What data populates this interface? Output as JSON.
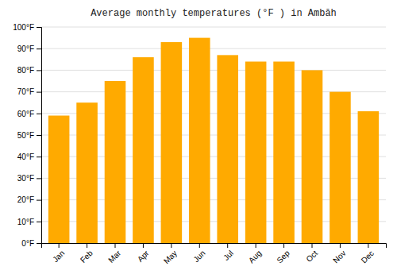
{
  "chart_data": {
    "type": "bar",
    "title": "Average monthly temperatures (°F ) in Ambāh",
    "categories": [
      "Jan",
      "Feb",
      "Mar",
      "Apr",
      "May",
      "Jun",
      "Jul",
      "Aug",
      "Sep",
      "Oct",
      "Nov",
      "Dec"
    ],
    "values": [
      59,
      65,
      75,
      86,
      93,
      95,
      87,
      84,
      84,
      80,
      70,
      61
    ],
    "color": "#FFAA00",
    "ylim": [
      0,
      100
    ],
    "yticks": [
      {
        "value": 0,
        "label": "0°F"
      },
      {
        "value": 10,
        "label": "10°F"
      },
      {
        "value": 20,
        "label": "20°F"
      },
      {
        "value": 30,
        "label": "30°F"
      },
      {
        "value": 40,
        "label": "40°F"
      },
      {
        "value": 50,
        "label": "50°F"
      },
      {
        "value": 60,
        "label": "60°F"
      },
      {
        "value": 70,
        "label": "70°F"
      },
      {
        "value": 80,
        "label": "80°F"
      },
      {
        "value": 90,
        "label": "90°F"
      },
      {
        "value": 100,
        "label": "100°F"
      }
    ],
    "grid": true
  }
}
